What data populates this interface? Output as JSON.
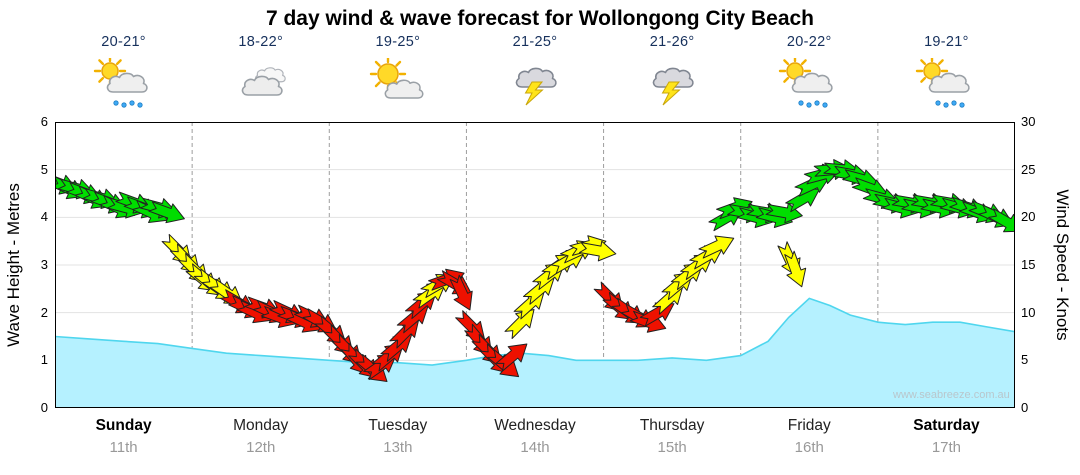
{
  "title": "7 day wind & wave forecast for Wollongong City Beach",
  "watermark": "www.seabreeze.com.au",
  "days": [
    {
      "name": "Sunday",
      "date": "11th",
      "temp": "20-21°",
      "icon": "sun-cloud-rain",
      "weekend": true
    },
    {
      "name": "Monday",
      "date": "12th",
      "temp": "18-22°",
      "icon": "cloudy",
      "weekend": false
    },
    {
      "name": "Tuesday",
      "date": "13th",
      "temp": "19-25°",
      "icon": "sun-cloud",
      "weekend": false
    },
    {
      "name": "Wednesday",
      "date": "14th",
      "temp": "21-25°",
      "icon": "storm",
      "weekend": false
    },
    {
      "name": "Thursday",
      "date": "15th",
      "temp": "21-26°",
      "icon": "storm",
      "weekend": false
    },
    {
      "name": "Friday",
      "date": "16th",
      "temp": "20-22°",
      "icon": "sun-cloud-rain",
      "weekend": false
    },
    {
      "name": "Saturday",
      "date": "17th",
      "temp": "19-21°",
      "icon": "sun-cloud-rain",
      "weekend": true
    }
  ],
  "axes": {
    "left": {
      "title": "Wave Height - Metres",
      "ticks": [
        0,
        1,
        2,
        3,
        4,
        5,
        6
      ],
      "max": 6
    },
    "right": {
      "title": "Wind Speed - Knots",
      "ticks": [
        0,
        5,
        10,
        15,
        20,
        25,
        30
      ],
      "max": 30
    }
  },
  "colors": {
    "wave_fill": "#b5f1ff",
    "wave_stroke": "#4fd6ee",
    "wind_green": "#00dd00",
    "wind_yellow": "#ffff00",
    "wind_red": "#ee1100",
    "arrow_outline": "#222222",
    "grid": "#e3e3e3",
    "day_divider": "#9e9e9e",
    "border": "#000000"
  },
  "chart_data": [
    {
      "type": "area",
      "name": "Wave height",
      "ylabel": "Wave Height - Metres",
      "ylim": [
        0,
        6
      ],
      "x_unit": "days from Sunday 11th (0-7)",
      "x": [
        0,
        0.25,
        0.5,
        0.75,
        1,
        1.25,
        1.5,
        1.75,
        2,
        2.25,
        2.5,
        2.75,
        3,
        3.2,
        3.4,
        3.6,
        3.8,
        4,
        4.25,
        4.5,
        4.75,
        5,
        5.2,
        5.35,
        5.5,
        5.65,
        5.8,
        6,
        6.2,
        6.4,
        6.6,
        6.8,
        7
      ],
      "values": [
        1.5,
        1.45,
        1.4,
        1.35,
        1.25,
        1.15,
        1.1,
        1.05,
        1.0,
        0.95,
        0.95,
        0.9,
        1.0,
        1.1,
        1.15,
        1.1,
        1.0,
        1.0,
        1.0,
        1.05,
        1.0,
        1.1,
        1.4,
        1.9,
        2.3,
        2.15,
        1.95,
        1.8,
        1.75,
        1.8,
        1.8,
        1.7,
        1.6
      ]
    },
    {
      "type": "scatter",
      "name": "Wind speed and direction arrows",
      "ylabel": "Wind Speed - Knots",
      "ylim": [
        0,
        30
      ],
      "x_unit": "days from Sunday 11th (0-7)",
      "point_format": [
        "x_days",
        "knots",
        "arrow_rotation_deg_cw_from_east",
        "color g|y|r"
      ],
      "points": [
        [
          0.04,
          23.5,
          20,
          "g"
        ],
        [
          0.1,
          23,
          25,
          "g"
        ],
        [
          0.16,
          23,
          15,
          "g"
        ],
        [
          0.22,
          22.5,
          20,
          "g"
        ],
        [
          0.28,
          22,
          25,
          "g"
        ],
        [
          0.34,
          22,
          15,
          "g"
        ],
        [
          0.4,
          21.5,
          20,
          "g"
        ],
        [
          0.46,
          21,
          25,
          "g"
        ],
        [
          0.52,
          21,
          15,
          "g"
        ],
        [
          0.58,
          21.5,
          20,
          "g"
        ],
        [
          0.64,
          21,
          20,
          "g"
        ],
        [
          0.7,
          20.5,
          25,
          "g"
        ],
        [
          0.76,
          21,
          15,
          "g"
        ],
        [
          0.82,
          20.5,
          20,
          "g"
        ],
        [
          0.9,
          16.5,
          45,
          "y"
        ],
        [
          0.96,
          15.5,
          45,
          "y"
        ],
        [
          1.02,
          14.5,
          45,
          "y"
        ],
        [
          1.08,
          13.5,
          40,
          "y"
        ],
        [
          1.14,
          13,
          40,
          "y"
        ],
        [
          1.2,
          12.5,
          35,
          "y"
        ],
        [
          1.26,
          12,
          35,
          "y"
        ],
        [
          1.34,
          11,
          30,
          "r"
        ],
        [
          1.4,
          10.5,
          25,
          "r"
        ],
        [
          1.46,
          10,
          25,
          "r"
        ],
        [
          1.52,
          10.5,
          20,
          "r"
        ],
        [
          1.58,
          10,
          25,
          "r"
        ],
        [
          1.64,
          9.5,
          20,
          "r"
        ],
        [
          1.7,
          10,
          25,
          "r"
        ],
        [
          1.76,
          9.5,
          20,
          "r"
        ],
        [
          1.82,
          9,
          25,
          "r"
        ],
        [
          1.88,
          9.5,
          25,
          "r"
        ],
        [
          1.94,
          9,
          30,
          "r"
        ],
        [
          2.02,
          8,
          40,
          "r"
        ],
        [
          2.08,
          7,
          45,
          "r"
        ],
        [
          2.14,
          6,
          45,
          "r"
        ],
        [
          2.2,
          5,
          50,
          "r"
        ],
        [
          2.26,
          4.5,
          45,
          "r"
        ],
        [
          2.32,
          4,
          40,
          "r"
        ],
        [
          2.38,
          4.5,
          -35,
          "r"
        ],
        [
          2.44,
          5.5,
          -40,
          "r"
        ],
        [
          2.5,
          6.5,
          -40,
          "r"
        ],
        [
          2.56,
          8,
          -45,
          "r"
        ],
        [
          2.62,
          9.5,
          -40,
          "r"
        ],
        [
          2.68,
          11,
          -40,
          "r"
        ],
        [
          2.74,
          12,
          -35,
          "y"
        ],
        [
          2.8,
          13,
          -30,
          "y"
        ],
        [
          2.86,
          13.5,
          -20,
          "r"
        ],
        [
          2.92,
          13,
          30,
          "r"
        ],
        [
          2.97,
          12,
          65,
          "r"
        ],
        [
          3.04,
          8.5,
          45,
          "r"
        ],
        [
          3.1,
          7,
          50,
          "r"
        ],
        [
          3.16,
          6,
          45,
          "r"
        ],
        [
          3.22,
          5,
          45,
          "r"
        ],
        [
          3.28,
          4.5,
          40,
          "r"
        ],
        [
          3.34,
          5.5,
          -40,
          "r"
        ],
        [
          3.4,
          9,
          -45,
          "y"
        ],
        [
          3.47,
          11,
          -42,
          "y"
        ],
        [
          3.54,
          12.5,
          -40,
          "y"
        ],
        [
          3.61,
          14,
          -38,
          "y"
        ],
        [
          3.68,
          15,
          -35,
          "y"
        ],
        [
          3.75,
          15.5,
          -30,
          "y"
        ],
        [
          3.82,
          16.5,
          -25,
          "y"
        ],
        [
          3.89,
          17,
          -15,
          "y"
        ],
        [
          3.96,
          16.5,
          10,
          "y"
        ],
        [
          4.05,
          11.5,
          45,
          "r"
        ],
        [
          4.12,
          10.5,
          40,
          "r"
        ],
        [
          4.19,
          10,
          35,
          "r"
        ],
        [
          4.26,
          9.5,
          30,
          "r"
        ],
        [
          4.33,
          9,
          20,
          "r"
        ],
        [
          4.4,
          10,
          -30,
          "r"
        ],
        [
          4.48,
          11.5,
          -42,
          "y"
        ],
        [
          4.55,
          13,
          -40,
          "y"
        ],
        [
          4.62,
          14,
          -38,
          "y"
        ],
        [
          4.69,
          15,
          -35,
          "y"
        ],
        [
          4.76,
          16,
          -30,
          "y"
        ],
        [
          4.83,
          17,
          -25,
          "y"
        ],
        [
          4.9,
          20,
          -30,
          "g"
        ],
        [
          4.96,
          21,
          -20,
          "g"
        ],
        [
          5.04,
          20.5,
          10,
          "g"
        ],
        [
          5.11,
          20,
          15,
          "g"
        ],
        [
          5.18,
          20.5,
          10,
          "g"
        ],
        [
          5.25,
          20,
          15,
          "g"
        ],
        [
          5.32,
          20.5,
          10,
          "g"
        ],
        [
          5.36,
          15.5,
          65,
          "y"
        ],
        [
          5.4,
          14.5,
          70,
          "y"
        ],
        [
          5.46,
          22,
          -30,
          "g"
        ],
        [
          5.53,
          23.5,
          -25,
          "g"
        ],
        [
          5.6,
          24.5,
          -15,
          "g"
        ],
        [
          5.67,
          25,
          -5,
          "g"
        ],
        [
          5.74,
          25,
          5,
          "g"
        ],
        [
          5.81,
          24.5,
          10,
          "g"
        ],
        [
          5.88,
          24,
          15,
          "g"
        ],
        [
          5.95,
          23,
          20,
          "g"
        ],
        [
          6.03,
          22,
          15,
          "g"
        ],
        [
          6.1,
          21.5,
          12,
          "g"
        ],
        [
          6.17,
          21,
          15,
          "g"
        ],
        [
          6.24,
          21.5,
          10,
          "g"
        ],
        [
          6.31,
          21,
          12,
          "g"
        ],
        [
          6.38,
          21.5,
          10,
          "g"
        ],
        [
          6.45,
          21,
          12,
          "g"
        ],
        [
          6.52,
          21.5,
          10,
          "g"
        ],
        [
          6.59,
          21,
          15,
          "g"
        ],
        [
          6.66,
          21,
          18,
          "g"
        ],
        [
          6.73,
          20.5,
          20,
          "g"
        ],
        [
          6.8,
          20.5,
          22,
          "g"
        ],
        [
          6.87,
          20,
          25,
          "g"
        ],
        [
          6.94,
          19.5,
          30,
          "g"
        ]
      ]
    }
  ]
}
